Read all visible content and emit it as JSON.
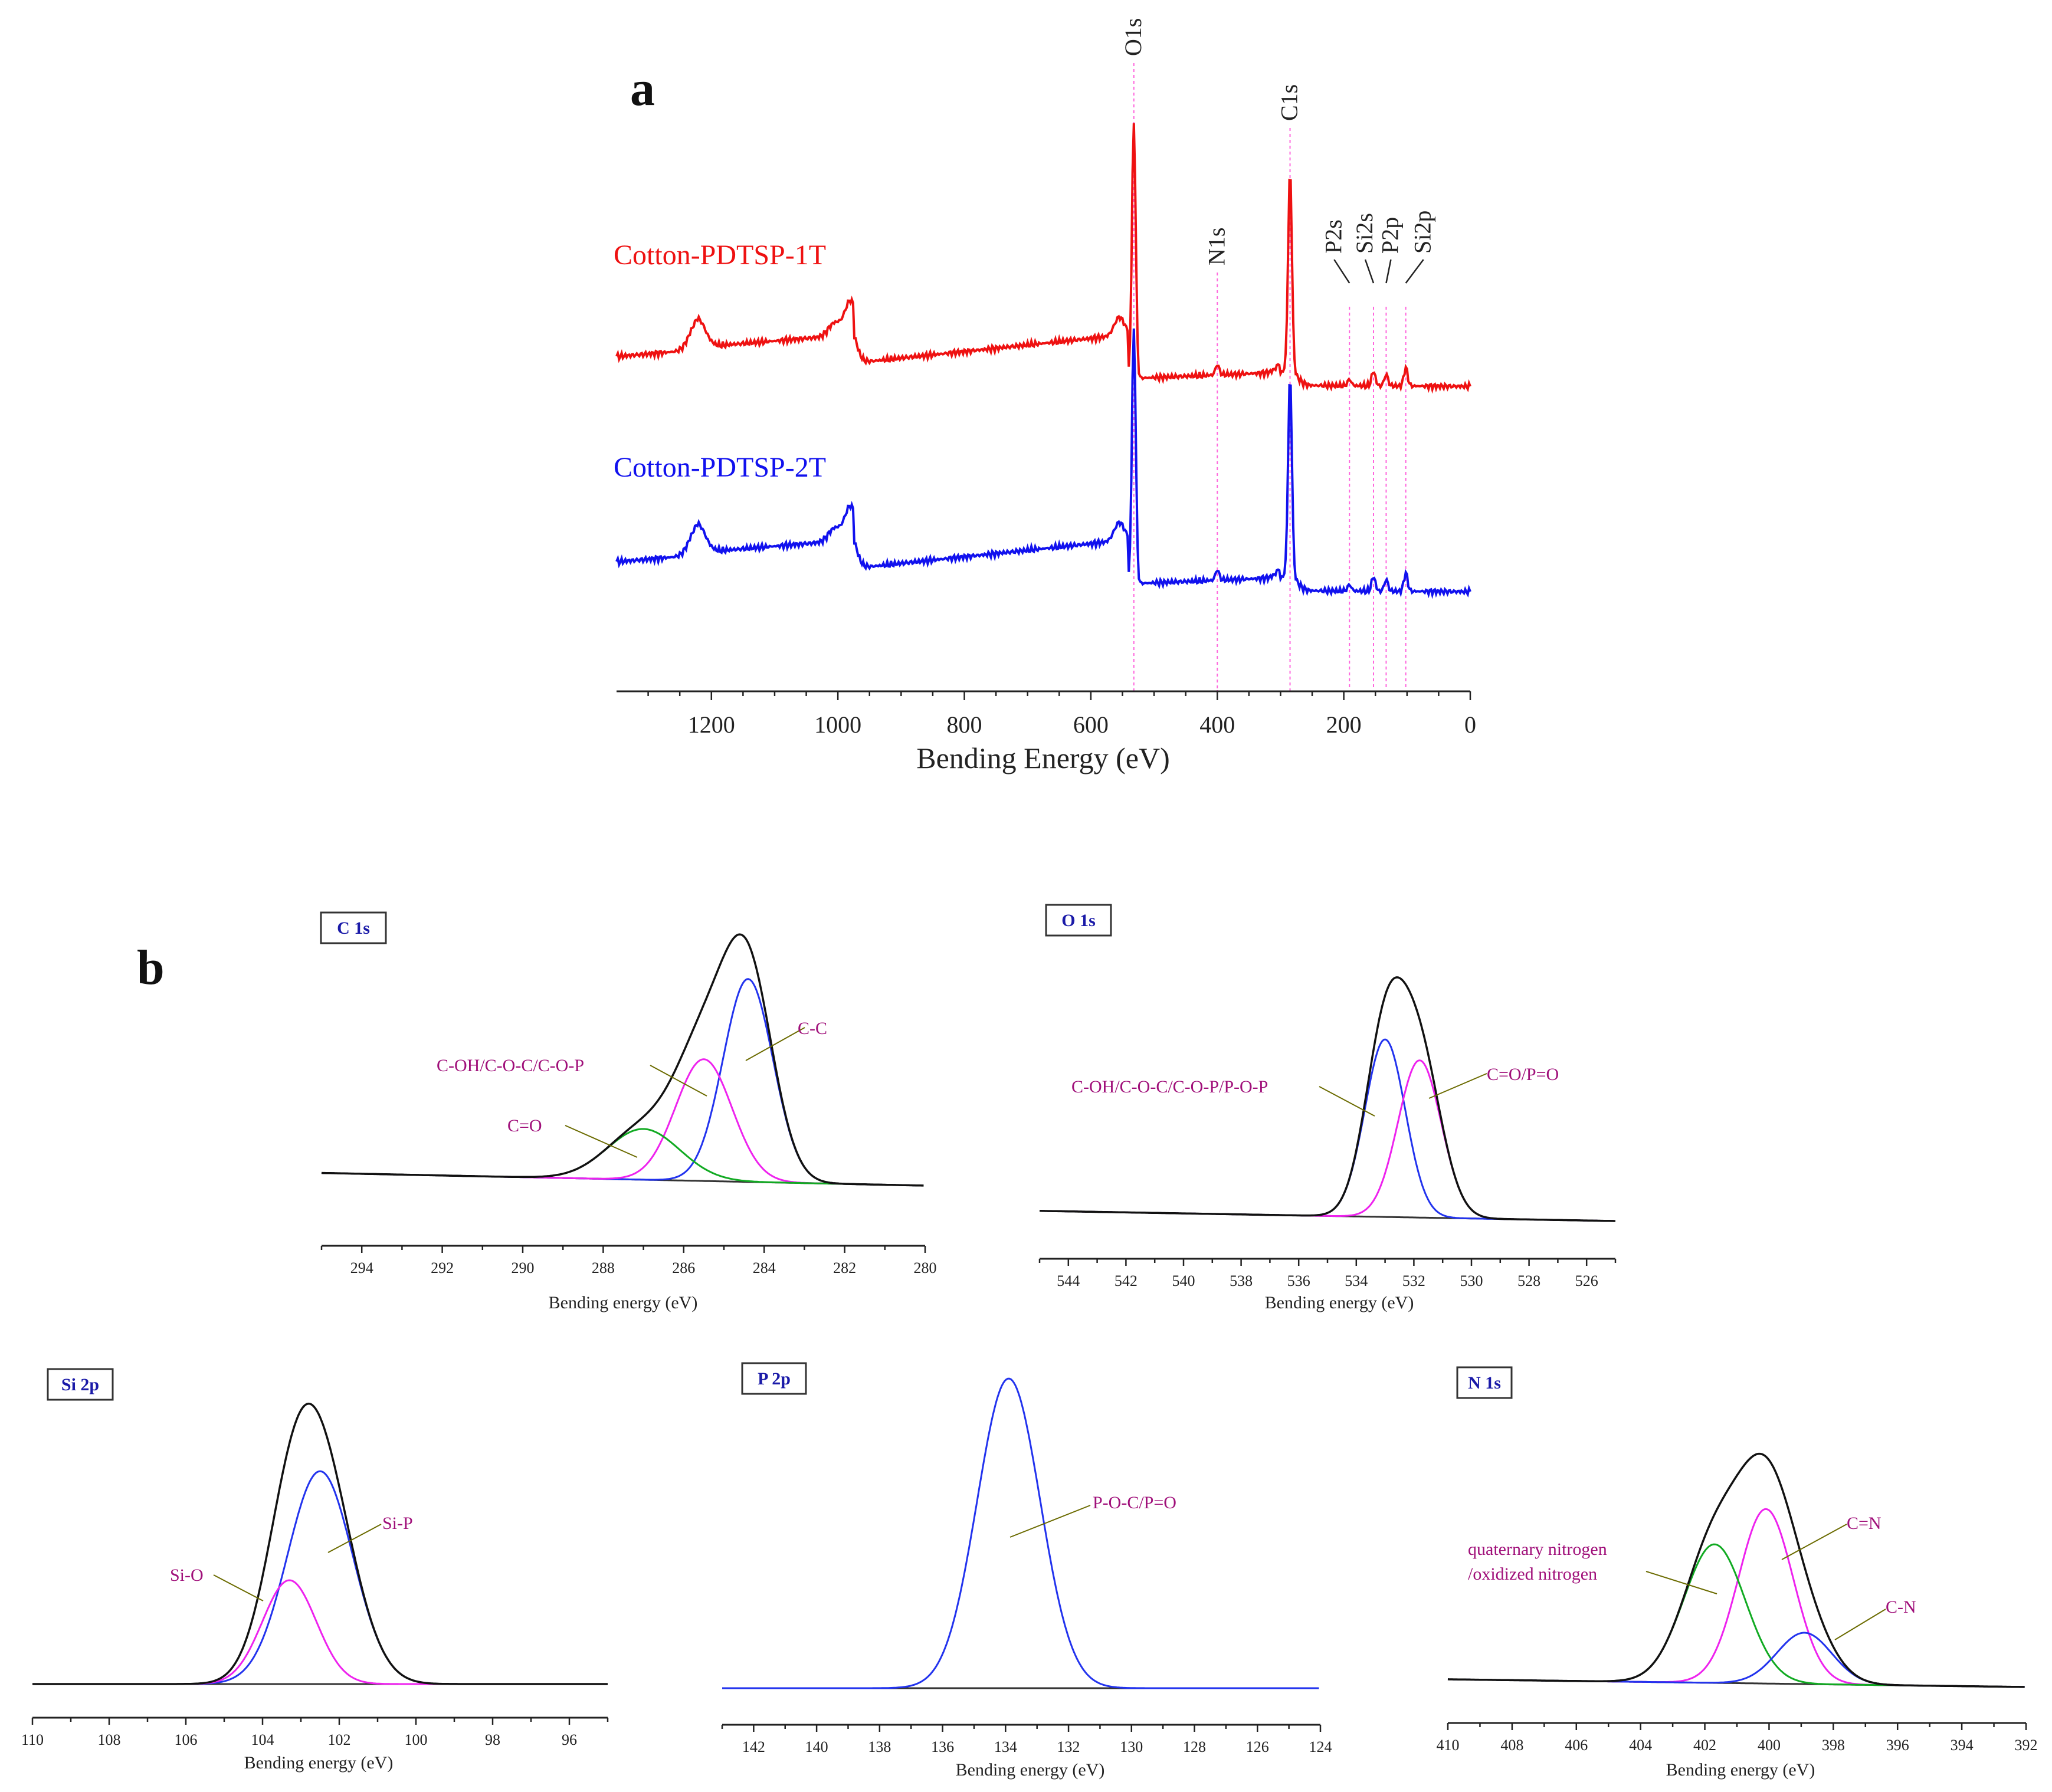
{
  "panel_labels": {
    "a": "a",
    "b": "b"
  },
  "chart_data": [
    {
      "id": "survey",
      "type": "line",
      "title": "",
      "xlabel": "Bending Energy (eV)",
      "ylabel": "",
      "xlim": [
        1350,
        0
      ],
      "xticks": [
        1200,
        1000,
        800,
        600,
        400,
        200,
        0
      ],
      "series": [
        {
          "name": "Cotton-PDTSP-1T",
          "color": "#ee1111",
          "offset": 1.0
        },
        {
          "name": "Cotton-PDTSP-2T",
          "color": "#1111ee",
          "offset": 0.0
        }
      ],
      "peaks": [
        {
          "label": "O1s",
          "x": 532
        },
        {
          "label": "N1s",
          "x": 400
        },
        {
          "label": "C1s",
          "x": 285
        },
        {
          "label": "P2s",
          "x": 191
        },
        {
          "label": "Si2s",
          "x": 153
        },
        {
          "label": "P2p",
          "x": 133
        },
        {
          "label": "Si2p",
          "x": 102
        }
      ]
    },
    {
      "id": "c1s",
      "type": "line",
      "tag": "C 1s",
      "xlabel": "Bending energy (eV)",
      "xlim": [
        295,
        280
      ],
      "xticks": [
        294,
        292,
        290,
        288,
        286,
        284,
        282,
        280
      ],
      "components": [
        {
          "name": "C-C",
          "center": 284.4,
          "amp": 0.8,
          "sigma": 0.62,
          "color": "#2233ee"
        },
        {
          "name": "C-OH/C-O-C/C-O-P",
          "center": 285.5,
          "amp": 0.48,
          "sigma": 0.7,
          "color": "#ee22ee"
        },
        {
          "name": "C=O",
          "center": 287.0,
          "amp": 0.2,
          "sigma": 0.9,
          "color": "#11aa22"
        }
      ]
    },
    {
      "id": "o1s",
      "type": "line",
      "tag": "O 1s",
      "xlabel": "Bending energy (eV)",
      "xlim": [
        545,
        525
      ],
      "xticks": [
        544,
        542,
        540,
        538,
        536,
        534,
        532,
        530,
        528,
        526
      ],
      "components": [
        {
          "name": "C-OH/C-O-C/C-O-P/P-O-P",
          "center": 533.0,
          "amp": 0.7,
          "sigma": 0.7,
          "color": "#2233ee"
        },
        {
          "name": "C=O/P=O",
          "center": 531.8,
          "amp": 0.62,
          "sigma": 0.75,
          "color": "#ee22ee"
        }
      ]
    },
    {
      "id": "si2p",
      "type": "line",
      "tag": "Si 2p",
      "xlabel": "Bending energy (eV)",
      "xlim": [
        110,
        95
      ],
      "xticks": [
        110,
        108,
        106,
        104,
        102,
        100,
        98,
        96
      ],
      "components": [
        {
          "name": "Si-P",
          "center": 102.5,
          "amp": 0.82,
          "sigma": 0.85,
          "color": "#2233ee"
        },
        {
          "name": "Si-O",
          "center": 103.3,
          "amp": 0.4,
          "sigma": 0.7,
          "color": "#ee22ee"
        }
      ]
    },
    {
      "id": "p2p",
      "type": "line",
      "tag": "P 2p",
      "xlabel": "Bending energy (eV)",
      "xlim": [
        143,
        124
      ],
      "xticks": [
        142,
        140,
        138,
        136,
        134,
        132,
        130,
        128,
        126,
        124
      ],
      "components": [
        {
          "name": "P-O-C/P=O",
          "center": 133.9,
          "amp": 1.0,
          "sigma": 1.0,
          "color": "#2233ee"
        }
      ]
    },
    {
      "id": "n1s",
      "type": "line",
      "tag": "N 1s",
      "xlabel": "Bending energy (eV)",
      "xlim": [
        410,
        392
      ],
      "xticks": [
        410,
        408,
        406,
        404,
        402,
        400,
        398,
        396,
        394,
        392
      ],
      "components": [
        {
          "name": "C=N",
          "center": 400.1,
          "amp": 0.68,
          "sigma": 0.85,
          "color": "#ee22ee"
        },
        {
          "name": "quaternary nitrogen /oxidized nitrogen",
          "center": 401.7,
          "amp": 0.54,
          "sigma": 0.95,
          "color": "#11aa22"
        },
        {
          "name": "C-N",
          "center": 398.9,
          "amp": 0.2,
          "sigma": 0.85,
          "color": "#2233ee"
        }
      ]
    }
  ],
  "annotations": {
    "c1s": {
      "cc": "C-C",
      "coh": "C-OH/C-O-C/C-O-P",
      "co": "C=O"
    },
    "o1s": {
      "coh": "C-OH/C-O-C/C-O-P/P-O-P",
      "co": "C=O/P=O"
    },
    "si2p": {
      "sip": "Si-P",
      "sio": "Si-O"
    },
    "p2p": {
      "poc": "P-O-C/P=O"
    },
    "n1s": {
      "cn2": "C=N",
      "q1": "quaternary nitrogen",
      "q2": "/oxidized nitrogen",
      "cn": "C-N"
    }
  }
}
